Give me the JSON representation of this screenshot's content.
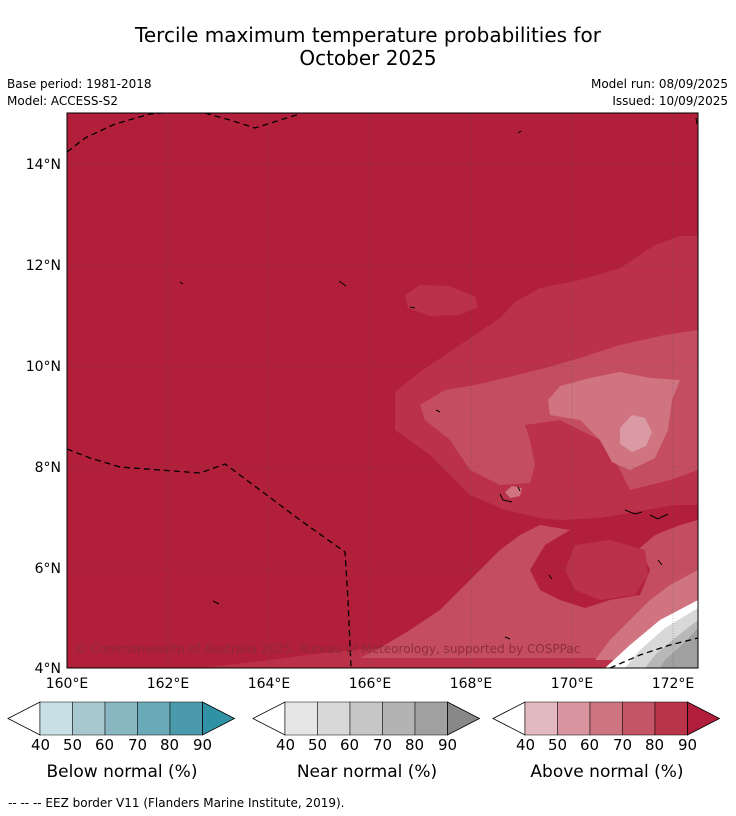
{
  "title_line1": "Tercile maximum temperature probabilities for",
  "title_line2": "October 2025",
  "base_period": "Base period: 1981-2018",
  "model": "Model: ACCESS-S2",
  "model_run": "Model run: 08/09/2025",
  "issued": "Issued: 10/09/2025",
  "copyright": "© Commonwealth of Australia 2025, Bureau of Meteorology, supported by COSPPac",
  "lat_ticks": [
    "14°N",
    "12°N",
    "10°N",
    "8°N",
    "6°N",
    "4°N"
  ],
  "lon_ticks": [
    "160°E",
    "162°E",
    "164°E",
    "166°E",
    "168°E",
    "170°E",
    "172°E"
  ],
  "colorbars": [
    {
      "label": "Below normal (%)",
      "ticks": [
        "40",
        "50",
        "60",
        "70",
        "80",
        "90"
      ],
      "colors": [
        "#ffffff",
        "#c9e1e6",
        "#a8c8cf",
        "#88b6c1",
        "#6aa9b7",
        "#4b9aab",
        "#3191a5"
      ]
    },
    {
      "label": "Near normal (%)",
      "ticks": [
        "40",
        "50",
        "60",
        "70",
        "80",
        "90"
      ],
      "colors": [
        "#ffffff",
        "#e6e6e6",
        "#d8d8d8",
        "#c6c6c6",
        "#b3b3b3",
        "#a0a0a0",
        "#888888"
      ]
    },
    {
      "label": "Above normal (%)",
      "ticks": [
        "40",
        "50",
        "60",
        "70",
        "80",
        "90"
      ],
      "colors": [
        "#ffffff",
        "#e2b9bf",
        "#d8959f",
        "#cc7480",
        "#c45567",
        "#b93349",
        "#b01e3b"
      ]
    }
  ],
  "map_colors": {
    "base": "#b21f3b",
    "level80": "#ba3149",
    "level70": "#c44e60",
    "level60": "#d07481",
    "level50": "#d99aa3",
    "near_light": "#d8d8d8",
    "near_mid": "#b8b8b8",
    "near_dark": "#a0a0a0"
  },
  "legend_note": "--  --  -- EEZ border V11 (Flanders Marine Institute, 2019)."
}
